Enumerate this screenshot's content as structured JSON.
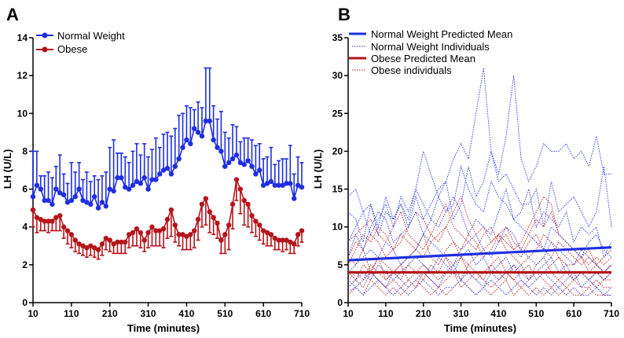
{
  "chart_data": [
    {
      "panel": "A",
      "type": "line",
      "title": "",
      "xlabel": "Time (minutes)",
      "ylabel": "LH (U/L)",
      "xlim": [
        10,
        710
      ],
      "ylim": [
        0,
        14
      ],
      "xticks": [
        10,
        110,
        210,
        310,
        410,
        510,
        610,
        710
      ],
      "yticks": [
        0,
        2,
        4,
        6,
        8,
        10,
        12,
        14
      ],
      "legend_position": "top-left",
      "error_bars": "mean + SEM (upward for Normal Weight, downward for Obese)",
      "x": [
        10,
        20,
        30,
        40,
        50,
        60,
        70,
        80,
        90,
        100,
        110,
        120,
        130,
        140,
        150,
        160,
        170,
        180,
        190,
        200,
        210,
        220,
        230,
        240,
        250,
        260,
        270,
        280,
        290,
        300,
        310,
        320,
        330,
        340,
        350,
        360,
        370,
        380,
        390,
        400,
        410,
        420,
        430,
        440,
        450,
        460,
        470,
        480,
        490,
        500,
        510,
        520,
        530,
        540,
        550,
        560,
        570,
        580,
        590,
        600,
        610,
        620,
        630,
        640,
        650,
        660,
        670,
        680,
        690,
        700,
        710
      ],
      "series": [
        {
          "name": "Normal Weight",
          "color": "#1f2ee0",
          "values": [
            5.6,
            6.2,
            6.0,
            5.4,
            5.4,
            5.2,
            6.0,
            5.8,
            5.7,
            5.3,
            5.4,
            5.6,
            6.0,
            5.4,
            5.3,
            5.2,
            5.6,
            5.0,
            5.3,
            5.1,
            6.0,
            5.9,
            6.6,
            6.6,
            6.1,
            6.0,
            6.2,
            6.4,
            6.3,
            6.6,
            6.0,
            6.5,
            6.5,
            6.8,
            7.0,
            7.1,
            6.8,
            7.2,
            7.6,
            8.2,
            8.6,
            8.4,
            9.2,
            9.0,
            8.8,
            9.6,
            9.6,
            8.6,
            8.2,
            8.0,
            7.2,
            7.4,
            7.6,
            7.8,
            7.4,
            7.3,
            7.5,
            7.2,
            6.8,
            7.0,
            6.2,
            6.3,
            6.4,
            6.2,
            6.2,
            6.2,
            6.3,
            6.3,
            5.5,
            6.2,
            6.1
          ],
          "errors": [
            2.4,
            1.8,
            0.7,
            1.3,
            1.5,
            1.4,
            1.2,
            2.0,
            1.1,
            1.0,
            2.0,
            1.3,
            1.4,
            1.1,
            1.6,
            1.2,
            1.1,
            1.5,
            1.4,
            1.8,
            2.2,
            2.7,
            1.3,
            1.3,
            1.6,
            1.4,
            1.8,
            2.0,
            1.5,
            1.8,
            1.7,
            1.6,
            2.2,
            1.4,
            1.9,
            1.9,
            2.0,
            2.0,
            2.3,
            1.8,
            1.8,
            1.9,
            1.0,
            1.6,
            1.5,
            2.8,
            2.8,
            1.8,
            1.5,
            2.1,
            1.8,
            1.3,
            1.8,
            1.5,
            1.1,
            1.4,
            1.2,
            1.4,
            1.5,
            1.4,
            1.4,
            1.4,
            1.8,
            1.1,
            1.3,
            1.4,
            1.3,
            2.0,
            1.3,
            1.5,
            1.3
          ]
        },
        {
          "name": "Obese",
          "color": "#b5141a",
          "values": [
            4.9,
            4.5,
            4.4,
            4.3,
            4.3,
            4.3,
            4.5,
            4.6,
            4.0,
            3.8,
            3.6,
            3.3,
            3.1,
            3.0,
            2.9,
            3.0,
            2.9,
            2.8,
            3.1,
            3.4,
            3.3,
            3.1,
            3.2,
            3.2,
            3.2,
            3.6,
            3.7,
            3.9,
            3.7,
            3.3,
            3.7,
            4.0,
            3.8,
            3.8,
            3.9,
            4.4,
            4.9,
            4.1,
            3.6,
            3.6,
            3.5,
            3.6,
            3.8,
            4.4,
            5.2,
            5.5,
            4.8,
            4.5,
            4.2,
            3.3,
            3.6,
            4.1,
            5.2,
            6.5,
            6.0,
            5.4,
            5.2,
            4.6,
            4.3,
            4.1,
            3.8,
            3.7,
            3.6,
            3.4,
            3.3,
            3.3,
            3.3,
            3.2,
            3.1,
            3.6,
            3.8
          ],
          "errors": [
            0.9,
            0.8,
            0.6,
            0.5,
            0.6,
            0.5,
            0.7,
            0.8,
            0.6,
            0.7,
            0.7,
            0.6,
            0.5,
            0.5,
            0.5,
            0.5,
            0.5,
            0.5,
            0.6,
            0.6,
            0.6,
            0.5,
            0.6,
            0.6,
            0.6,
            0.7,
            0.7,
            0.9,
            0.8,
            0.6,
            0.8,
            1.0,
            0.8,
            0.8,
            1.0,
            1.0,
            1.4,
            0.9,
            0.6,
            0.8,
            0.7,
            0.8,
            0.9,
            1.1,
            1.2,
            1.4,
            1.1,
            0.9,
            0.8,
            0.7,
            1.0,
            1.3,
            1.3,
            1.1,
            1.3,
            1.3,
            1.2,
            0.9,
            0.8,
            0.8,
            0.7,
            0.7,
            0.6,
            0.6,
            0.5,
            0.6,
            0.5,
            0.6,
            0.5,
            0.6,
            0.6
          ]
        }
      ]
    },
    {
      "panel": "B",
      "type": "line",
      "title": "",
      "xlabel": "Time (minutes)",
      "ylabel": "LH (U/L)",
      "xlim": [
        10,
        710
      ],
      "ylim": [
        0,
        35
      ],
      "xticks": [
        10,
        110,
        210,
        310,
        410,
        510,
        610,
        710
      ],
      "yticks": [
        0,
        5,
        10,
        15,
        20,
        25,
        30,
        35
      ],
      "legend_position": "top",
      "predicted_means": [
        {
          "name": "Normal Weight Predicted Mean",
          "color": "#1f2ee0",
          "x": [
            10,
            710
          ],
          "y": [
            5.6,
            7.3
          ]
        },
        {
          "name": "Obese Predicted Mean",
          "color": "#b5141a",
          "x": [
            10,
            710
          ],
          "y": [
            4.0,
            4.0
          ]
        }
      ],
      "individual_groups": [
        {
          "name": "Normal Weight Individuals",
          "color": "#1f2ee0",
          "style": "dotted"
        },
        {
          "name": "Obese individuals",
          "color": "#b5141a",
          "style": "dotted"
        }
      ],
      "individuals": {
        "x": [
          10,
          30,
          50,
          70,
          90,
          110,
          130,
          150,
          170,
          190,
          210,
          230,
          250,
          270,
          290,
          310,
          330,
          350,
          370,
          390,
          410,
          430,
          450,
          470,
          490,
          510,
          530,
          550,
          570,
          590,
          610,
          630,
          650,
          670,
          690,
          710
        ],
        "normal_weight": [
          [
            14,
            15,
            12,
            13,
            10,
            14,
            11,
            13,
            11,
            15,
            20,
            17,
            14,
            16,
            19,
            21,
            19,
            25,
            31,
            20,
            17,
            22,
            30,
            19,
            16,
            18,
            21,
            20,
            20,
            21,
            19,
            20,
            18,
            22,
            17,
            17
          ],
          [
            12,
            11,
            8,
            13,
            9,
            12,
            11,
            13,
            10,
            14,
            11,
            13,
            15,
            16,
            11,
            13,
            18,
            14,
            16,
            20,
            16,
            17,
            15,
            13,
            13,
            15,
            10,
            16,
            12,
            13,
            14,
            12,
            10,
            12,
            18,
            10
          ],
          [
            8,
            10,
            12,
            9,
            11,
            13,
            10,
            14,
            12,
            15,
            13,
            11,
            14,
            12,
            13,
            18,
            15,
            13,
            12,
            16,
            14,
            13,
            11,
            12,
            15,
            10,
            12,
            11,
            10,
            12,
            8,
            10,
            9,
            10,
            6,
            8
          ],
          [
            6,
            9,
            7,
            10,
            12,
            11,
            8,
            9,
            10,
            12,
            9,
            11,
            10,
            12,
            14,
            12,
            9,
            11,
            10,
            9,
            12,
            15,
            11,
            10,
            9,
            8,
            7,
            10,
            9,
            8,
            7,
            6,
            8,
            9,
            7,
            6
          ],
          [
            4,
            5,
            6,
            7,
            6,
            8,
            7,
            5,
            6,
            7,
            9,
            8,
            7,
            6,
            5,
            7,
            8,
            9,
            7,
            6,
            8,
            10,
            9,
            7,
            6,
            5,
            6,
            8,
            7,
            6,
            5,
            7,
            6,
            5,
            4,
            5
          ],
          [
            3,
            2,
            3,
            4,
            3,
            2,
            4,
            3,
            2,
            3,
            4,
            3,
            2,
            4,
            5,
            3,
            4,
            3,
            2,
            4,
            3,
            4,
            5,
            3,
            2,
            3,
            4,
            3,
            2,
            3,
            4,
            2,
            3,
            2,
            1,
            2
          ],
          [
            1.5,
            2,
            1,
            2,
            3,
            2,
            1,
            2,
            1,
            2,
            3,
            2,
            1,
            2,
            2,
            3,
            2,
            1,
            2,
            3,
            2,
            1,
            2,
            3,
            2,
            1,
            2,
            1,
            2,
            1,
            2,
            1,
            1,
            2,
            1,
            1
          ],
          [
            2,
            3,
            4,
            3,
            5,
            4,
            3,
            4,
            5,
            6,
            5,
            4,
            6,
            5,
            4,
            6,
            7,
            5,
            6,
            4,
            5,
            6,
            4,
            5,
            3,
            4,
            5,
            6,
            4,
            5,
            3,
            4,
            3,
            4,
            3,
            4
          ]
        ],
        "obese": [
          [
            6,
            5,
            7,
            4,
            6,
            5,
            4,
            5,
            6,
            7,
            9,
            6,
            5,
            7,
            8,
            6,
            5,
            6,
            7,
            8,
            9,
            7,
            6,
            5,
            6,
            7,
            9,
            8,
            6,
            5,
            5,
            6,
            4,
            5,
            4,
            5
          ],
          [
            4,
            3,
            5,
            4,
            6,
            3,
            4,
            3,
            5,
            4,
            3,
            5,
            4,
            6,
            4,
            3,
            5,
            4,
            3,
            5,
            6,
            4,
            3,
            4,
            5,
            3,
            4,
            5,
            6,
            4,
            3,
            4,
            3,
            4,
            3,
            4
          ],
          [
            2,
            3,
            2,
            4,
            3,
            2,
            3,
            2,
            3,
            2,
            4,
            3,
            2,
            3,
            4,
            2,
            3,
            4,
            3,
            2,
            3,
            4,
            3,
            2,
            3,
            4,
            3,
            2,
            3,
            2,
            3,
            2,
            2,
            3,
            2,
            2
          ],
          [
            5,
            7,
            9,
            8,
            10,
            9,
            7,
            8,
            10,
            12,
            11,
            9,
            8,
            10,
            12,
            14,
            11,
            9,
            10,
            8,
            9,
            10,
            8,
            7,
            9,
            11,
            10,
            12,
            9,
            8,
            7,
            6,
            5,
            6,
            5,
            6
          ],
          [
            8,
            9,
            10,
            11,
            9,
            8,
            10,
            12,
            9,
            8,
            7,
            9,
            11,
            13,
            10,
            9,
            8,
            7,
            9,
            10,
            8,
            9,
            7,
            8,
            10,
            12,
            14,
            13,
            9,
            8,
            7,
            6,
            7,
            5,
            6,
            7
          ],
          [
            3,
            4,
            3,
            5,
            4,
            3,
            4,
            5,
            3,
            4,
            5,
            4,
            3,
            4,
            5,
            6,
            4,
            3,
            4,
            5,
            4,
            3,
            5,
            4,
            3,
            5,
            6,
            4,
            3,
            4,
            3,
            4,
            3,
            2,
            3,
            3
          ],
          [
            1,
            2,
            1,
            3,
            2,
            1,
            2,
            1,
            2,
            3,
            2,
            1,
            2,
            1,
            2,
            3,
            2,
            1,
            2,
            1,
            2,
            3,
            1,
            2,
            1,
            2,
            1,
            2,
            1,
            2,
            1,
            1,
            2,
            1,
            1,
            1
          ],
          [
            6,
            8,
            7,
            9,
            8,
            6,
            7,
            9,
            8,
            7,
            6,
            8,
            9,
            10,
            8,
            7,
            9,
            8,
            6,
            7,
            9,
            8,
            7,
            6,
            8,
            9,
            7,
            6,
            8,
            7,
            6,
            5,
            6,
            5,
            4,
            5
          ]
        ]
      }
    }
  ],
  "panelA": {
    "label": "A",
    "legend": [
      "Normal Weight",
      "Obese"
    ],
    "xlabel": "Time (minutes)",
    "ylabel": "LH (U/L)"
  },
  "panelB": {
    "label": "B",
    "legend": [
      "Normal Weight Predicted Mean",
      "Normal Weight Individuals",
      "Obese Predicted Mean",
      "Obese individuals"
    ],
    "xlabel": "Time (minutes)",
    "ylabel": "LH (U/L)"
  }
}
